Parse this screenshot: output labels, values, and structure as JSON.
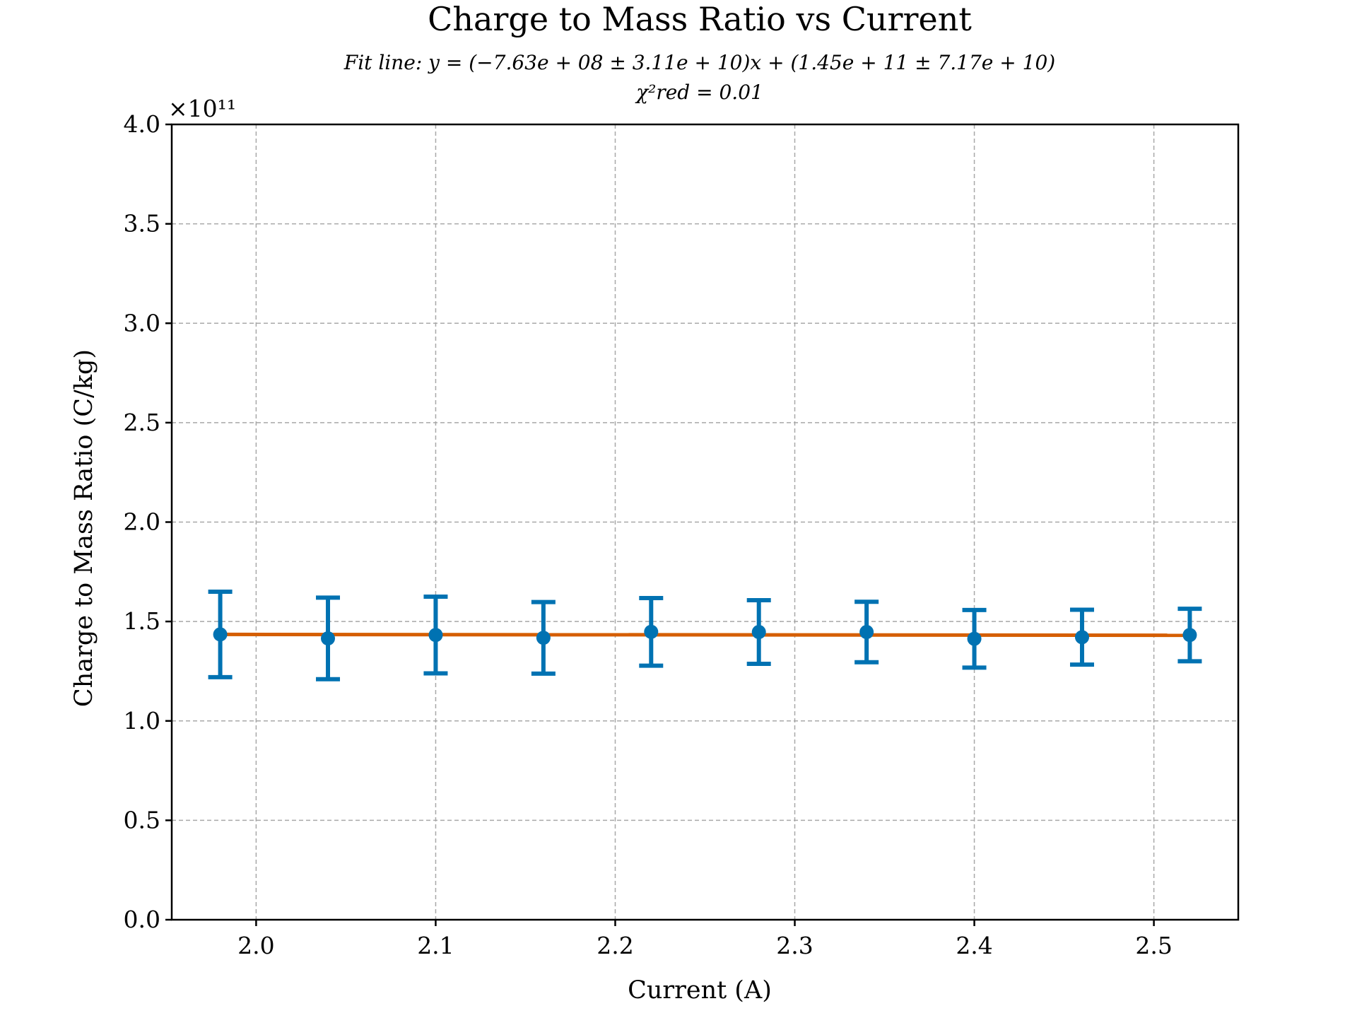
{
  "chart_data": {
    "type": "scatter",
    "title": "Charge to Mass Ratio vs Current",
    "subtitle_line1": "Fit line: y = (−7.63e + 08 ± 3.11e + 10)x + (1.45e + 11 ± 7.17e + 10)",
    "subtitle_line2": "χ²red = 0.01",
    "xlabel": "Current (A)",
    "ylabel": "Charge to Mass Ratio (C/kg)",
    "y_offset_label": "×10¹¹",
    "xlim": [
      1.953,
      2.547
    ],
    "ylim": [
      0,
      4.0
    ],
    "y_scale_factor": 100000000000.0,
    "grid": true,
    "x_ticks": [
      2.0,
      2.1,
      2.2,
      2.3,
      2.4,
      2.5
    ],
    "x_tick_labels": [
      "2.0",
      "2.1",
      "2.2",
      "2.3",
      "2.4",
      "2.5"
    ],
    "y_ticks": [
      0.0,
      0.5,
      1.0,
      1.5,
      2.0,
      2.5,
      3.0,
      3.5,
      4.0
    ],
    "y_tick_labels": [
      "0.0",
      "0.5",
      "1.0",
      "1.5",
      "2.0",
      "2.5",
      "3.0",
      "3.5",
      "4.0"
    ],
    "series": [
      {
        "type": "errorbar",
        "color": "#0072b2",
        "x": [
          1.98,
          2.04,
          2.1,
          2.16,
          2.22,
          2.28,
          2.34,
          2.4,
          2.46,
          2.52
        ],
        "y": [
          1.435,
          1.415,
          1.432,
          1.418,
          1.448,
          1.447,
          1.447,
          1.413,
          1.421,
          1.432
        ],
        "yerr": [
          0.215,
          0.205,
          0.193,
          0.18,
          0.17,
          0.16,
          0.152,
          0.145,
          0.138,
          0.132
        ]
      },
      {
        "type": "line",
        "color": "#d55e00",
        "slope": -0.00763,
        "intercept": 1.45
      }
    ]
  }
}
